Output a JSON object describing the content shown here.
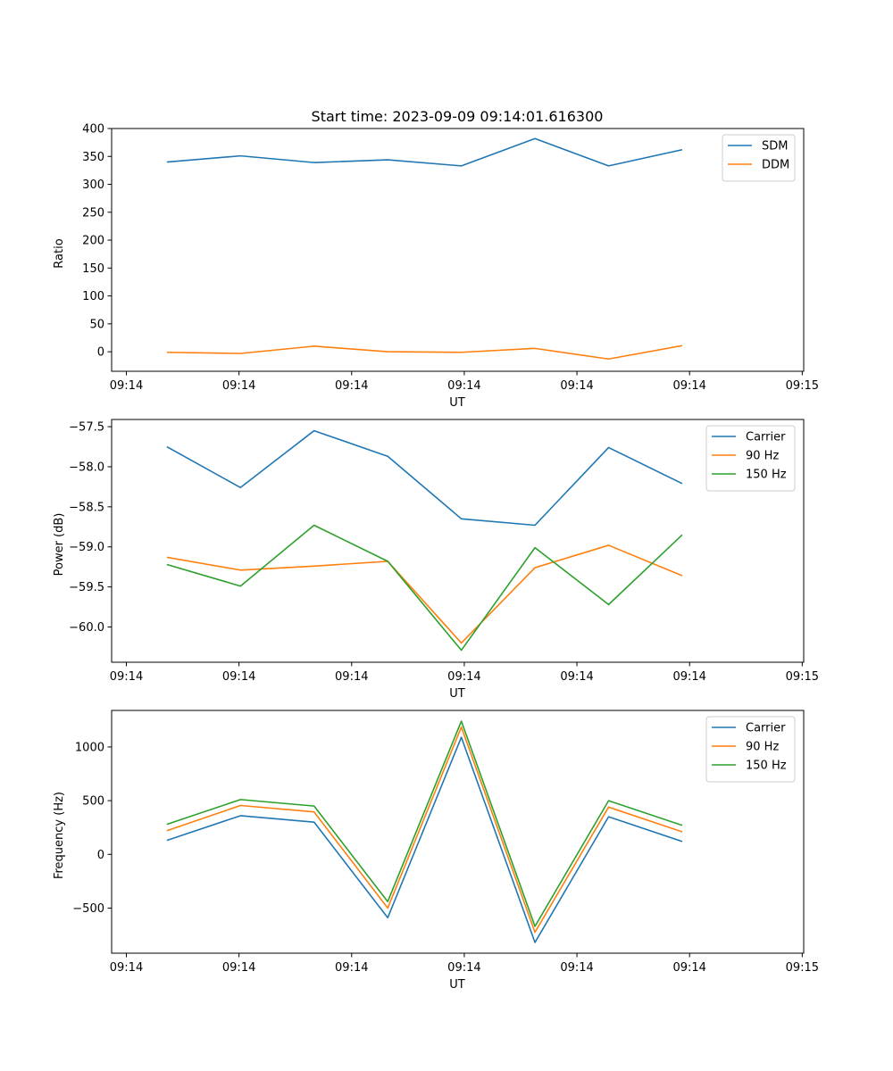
{
  "figure_title": "Start time: 2023-09-09 09:14:01.616300",
  "colors": {
    "blue": "#1f77b4",
    "orange": "#ff7f0e",
    "green": "#2ca02c"
  },
  "chart_data": [
    {
      "type": "line",
      "title": "Start time: 2023-09-09 09:14:01.616300",
      "xlabel": "UT",
      "ylabel": "Ratio",
      "x": [
        1,
        2,
        3,
        4,
        5,
        6,
        7,
        8
      ],
      "xlim": [
        0.25,
        9.65
      ],
      "xticks": [
        0.45,
        1.98,
        3.51,
        5.04,
        6.57,
        8.1,
        9.63
      ],
      "xtick_labels": [
        "09:14",
        "09:14",
        "09:14",
        "09:14",
        "09:14",
        "09:14",
        "09:15"
      ],
      "ylim": [
        -35,
        400
      ],
      "yticks": [
        0,
        50,
        100,
        150,
        200,
        250,
        300,
        350,
        400
      ],
      "ytick_labels": [
        "0",
        "50",
        "100",
        "150",
        "200",
        "250",
        "300",
        "350",
        "400"
      ],
      "legend": "top-right",
      "series": [
        {
          "name": "SDM",
          "color": "#1f77b4",
          "values": [
            340,
            351,
            339,
            344,
            333,
            382,
            333,
            362
          ]
        },
        {
          "name": "DDM",
          "color": "#ff7f0e",
          "values": [
            -1,
            -3,
            10,
            0,
            -1,
            6,
            -13,
            11
          ]
        }
      ]
    },
    {
      "type": "line",
      "title": "",
      "xlabel": "UT",
      "ylabel": "Power (dB)",
      "x": [
        1,
        2,
        3,
        4,
        5,
        6,
        7,
        8
      ],
      "xlim": [
        0.25,
        9.65
      ],
      "xticks": [
        0.45,
        1.98,
        3.51,
        5.04,
        6.57,
        8.1,
        9.63
      ],
      "xtick_labels": [
        "09:14",
        "09:14",
        "09:14",
        "09:14",
        "09:14",
        "09:14",
        "09:15"
      ],
      "ylim": [
        -60.44,
        -57.41
      ],
      "yticks": [
        -60.0,
        -59.5,
        -59.0,
        -58.5,
        -58.0,
        -57.5
      ],
      "ytick_labels": [
        "−60.0",
        "−59.5",
        "−59.0",
        "−58.5",
        "−58.0",
        "−57.5"
      ],
      "legend": "top-right",
      "series": [
        {
          "name": "Carrier",
          "color": "#1f77b4",
          "values": [
            -57.75,
            -58.26,
            -57.55,
            -57.87,
            -58.65,
            -58.73,
            -57.76,
            -58.21
          ]
        },
        {
          "name": "90 Hz",
          "color": "#ff7f0e",
          "values": [
            -59.13,
            -59.29,
            -59.24,
            -59.18,
            -60.2,
            -59.26,
            -58.98,
            -59.36
          ]
        },
        {
          "name": "150 Hz",
          "color": "#2ca02c",
          "values": [
            -59.22,
            -59.49,
            -58.73,
            -59.18,
            -60.29,
            -59.01,
            -59.72,
            -58.85
          ]
        }
      ]
    },
    {
      "type": "line",
      "title": "",
      "xlabel": "UT",
      "ylabel": "Frequency (Hz)",
      "x": [
        1,
        2,
        3,
        4,
        5,
        6,
        7,
        8
      ],
      "xlim": [
        0.25,
        9.65
      ],
      "xticks": [
        0.45,
        1.98,
        3.51,
        5.04,
        6.57,
        8.1,
        9.63
      ],
      "xtick_labels": [
        "09:14",
        "09:14",
        "09:14",
        "09:14",
        "09:14",
        "09:14",
        "09:15"
      ],
      "ylim": [
        -920,
        1340
      ],
      "yticks": [
        -500,
        0,
        500,
        1000
      ],
      "ytick_labels": [
        "−500",
        "0",
        "500",
        "1000"
      ],
      "legend": "top-right",
      "series": [
        {
          "name": "Carrier",
          "color": "#1f77b4",
          "values": [
            130,
            360,
            300,
            -590,
            1090,
            -820,
            350,
            120
          ]
        },
        {
          "name": "90 Hz",
          "color": "#ff7f0e",
          "values": [
            220,
            455,
            395,
            -500,
            1185,
            -725,
            440,
            210
          ]
        },
        {
          "name": "150 Hz",
          "color": "#2ca02c",
          "values": [
            280,
            510,
            450,
            -440,
            1240,
            -670,
            500,
            270
          ]
        }
      ]
    }
  ]
}
